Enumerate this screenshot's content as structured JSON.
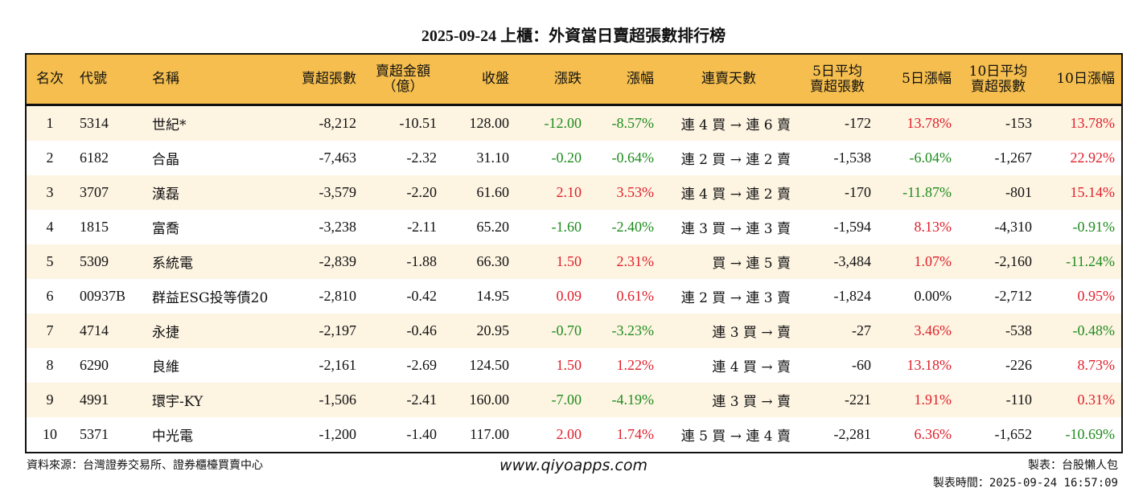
{
  "title": "2025-09-24 上櫃：外資當日賣超張數排行榜",
  "headers": [
    "名次",
    "代號",
    "名稱",
    "賣超張數",
    "賣超金額\n（億）",
    "收盤",
    "漲跌",
    "漲幅",
    "連賣天數",
    "5日平均\n賣超張數",
    "5日漲幅",
    "10日平均\n賣超張數",
    "10日漲幅"
  ],
  "rows": [
    [
      "1",
      "5314",
      "世紀*",
      "-8,212",
      "-10.51",
      "128.00",
      "-12.00",
      "-8.57%",
      "連 4 買 → 連 6 賣",
      "-172",
      "13.78%",
      "-153",
      "13.78%"
    ],
    [
      "2",
      "6182",
      "合晶",
      "-7,463",
      "-2.32",
      "31.10",
      "-0.20",
      "-0.64%",
      "連 2 買 → 連 2 賣",
      "-1,538",
      "-6.04%",
      "-1,267",
      "22.92%"
    ],
    [
      "3",
      "3707",
      "漢磊",
      "-3,579",
      "-2.20",
      "61.60",
      "2.10",
      "3.53%",
      "連 4 買 → 連 2 賣",
      "-170",
      "-11.87%",
      "-801",
      "15.14%"
    ],
    [
      "4",
      "1815",
      "富喬",
      "-3,238",
      "-2.11",
      "65.20",
      "-1.60",
      "-2.40%",
      "連 3 買 → 連 3 賣",
      "-1,594",
      "8.13%",
      "-4,310",
      "-0.91%"
    ],
    [
      "5",
      "5309",
      "系統電",
      "-2,839",
      "-1.88",
      "66.30",
      "1.50",
      "2.31%",
      "買 → 連 5 賣",
      "-3,484",
      "1.07%",
      "-2,160",
      "-11.24%"
    ],
    [
      "6",
      "00937B",
      "群益ESG投等債20",
      "-2,810",
      "-0.42",
      "14.95",
      "0.09",
      "0.61%",
      "連 2 買 → 連 3 賣",
      "-1,824",
      "0.00%",
      "-2,712",
      "0.95%"
    ],
    [
      "7",
      "4714",
      "永捷",
      "-2,197",
      "-0.46",
      "20.95",
      "-0.70",
      "-3.23%",
      "連 3 買 → 賣",
      "-27",
      "3.46%",
      "-538",
      "-0.48%"
    ],
    [
      "8",
      "6290",
      "良維",
      "-2,161",
      "-2.69",
      "124.50",
      "1.50",
      "1.22%",
      "連 4 買 → 賣",
      "-60",
      "13.18%",
      "-226",
      "8.73%"
    ],
    [
      "9",
      "4991",
      "環宇-KY",
      "-1,506",
      "-2.41",
      "160.00",
      "-7.00",
      "-4.19%",
      "連 3 買 → 賣",
      "-221",
      "1.91%",
      "-110",
      "0.31%"
    ],
    [
      "10",
      "5371",
      "中光電",
      "-1,200",
      "-1.40",
      "117.00",
      "2.00",
      "1.74%",
      "連 5 買 → 連 4 賣",
      "-2,281",
      "6.36%",
      "-1,652",
      "-10.69%"
    ]
  ],
  "footer": {
    "source": "資料來源：台灣證券交易所、證券櫃檯買賣中心",
    "site": "www.qiyoapps.com",
    "maker": "製表：台股懶人包",
    "time": "製表時間：2025-09-24 16:57:09"
  },
  "colors": {
    "header_bg": "#F5BE4E",
    "odd_row_bg": "#FDF4E2",
    "up": "#E0202B",
    "down": "#1E8C1E"
  }
}
